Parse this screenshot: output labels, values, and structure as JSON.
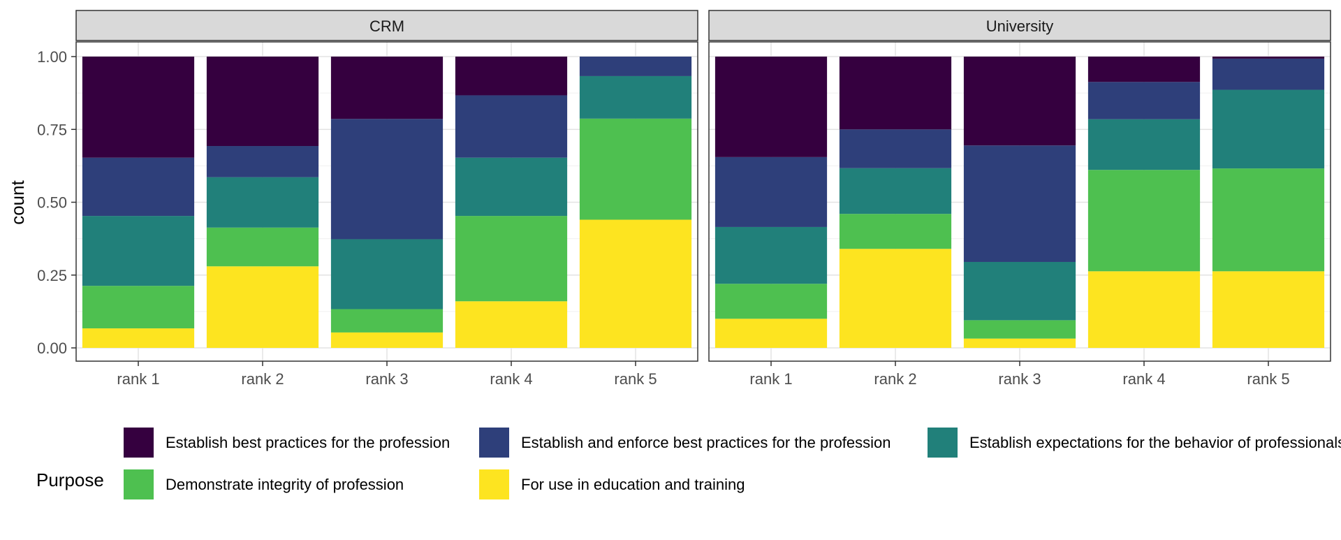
{
  "chart_data": {
    "type": "bar",
    "stacked": "fill",
    "ylabel": "count",
    "ylim": [
      0,
      1
    ],
    "yticks": [
      "0.00",
      "0.25",
      "0.50",
      "0.75",
      "1.00"
    ],
    "categories": [
      "rank 1",
      "rank 2",
      "rank 3",
      "rank 4",
      "rank 5"
    ],
    "grid": true,
    "legend": {
      "title": "Purpose",
      "placement": "bottom",
      "items": [
        {
          "name": "Establish best practices for the profession",
          "color": "#35003F"
        },
        {
          "name": "Establish and enforce best practices for the profession",
          "color": "#2E3F7A"
        },
        {
          "name": "Establish expectations for the behavior of professionals",
          "color": "#21807A"
        },
        {
          "name": "Demonstrate integrity of profession",
          "color": "#4EC050"
        },
        {
          "name": "For use in education and training",
          "color": "#FDE420"
        }
      ]
    },
    "panels": [
      {
        "name": "CRM",
        "series": [
          {
            "name": "For use in education and training",
            "values": [
              0.067,
              0.28,
              0.053,
              0.16,
              0.44
            ]
          },
          {
            "name": "Demonstrate integrity of profession",
            "values": [
              0.146,
              0.133,
              0.08,
              0.293,
              0.347
            ]
          },
          {
            "name": "Establish expectations for the behavior of professionals",
            "values": [
              0.24,
              0.173,
              0.24,
              0.2,
              0.146
            ]
          },
          {
            "name": "Establish and enforce best practices for the profession",
            "values": [
              0.2,
              0.107,
              0.413,
              0.214,
              0.067
            ]
          },
          {
            "name": "Establish best practices for the profession",
            "values": [
              0.347,
              0.307,
              0.214,
              0.133,
              0.0
            ]
          }
        ]
      },
      {
        "name": "University",
        "series": [
          {
            "name": "For use in education and training",
            "values": [
              0.1,
              0.34,
              0.032,
              0.263,
              0.263
            ]
          },
          {
            "name": "Demonstrate integrity of profession",
            "values": [
              0.12,
              0.12,
              0.063,
              0.348,
              0.353
            ]
          },
          {
            "name": "Establish expectations for the behavior of professionals",
            "values": [
              0.195,
              0.157,
              0.2,
              0.174,
              0.27
            ]
          },
          {
            "name": "Establish and enforce best practices for the profession",
            "values": [
              0.24,
              0.133,
              0.4,
              0.128,
              0.107
            ]
          },
          {
            "name": "Establish best practices for the profession",
            "values": [
              0.345,
              0.25,
              0.305,
              0.087,
              0.007
            ]
          }
        ]
      }
    ]
  }
}
